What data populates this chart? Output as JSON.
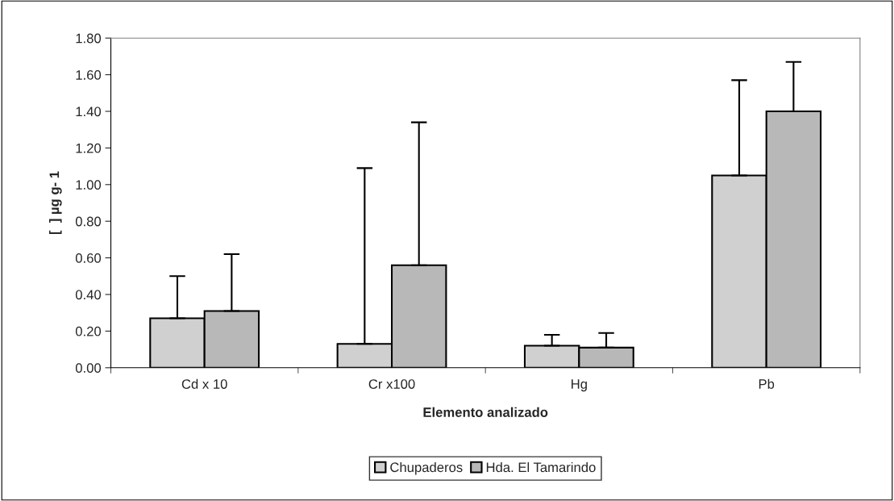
{
  "chart_data": {
    "type": "bar",
    "xlabel": "Elemento analizado",
    "ylabel": "[  ] µg g- 1",
    "categories": [
      "Cd x 10",
      "Cr x100",
      "Hg",
      "Pb"
    ],
    "series": [
      {
        "name": "Chupaderos",
        "color": "#d0d0d0",
        "values": [
          0.27,
          0.13,
          0.12,
          1.05
        ],
        "errors": [
          [
            0.27,
            0.5
          ],
          [
            0.13,
            1.09
          ],
          [
            0.12,
            0.18
          ],
          [
            1.05,
            1.57
          ]
        ]
      },
      {
        "name": "Hda. El Tamarindo",
        "color": "#b8b8b8",
        "values": [
          0.31,
          0.56,
          0.11,
          1.4
        ],
        "errors": [
          [
            0.31,
            0.62
          ],
          [
            0.56,
            1.34
          ],
          [
            0.11,
            0.19
          ],
          [
            1.4,
            1.67
          ]
        ]
      }
    ],
    "ylim": [
      0,
      1.8
    ],
    "yticks": [
      {
        "value": 0,
        "label": "0.00"
      },
      {
        "value": 0.2,
        "label": "0.20"
      },
      {
        "value": 0.4,
        "label": "0.40"
      },
      {
        "value": 0.6,
        "label": "0.60"
      },
      {
        "value": 0.8,
        "label": "0.80"
      },
      {
        "value": 1.0,
        "label": "1.00"
      },
      {
        "value": 1.2,
        "label": "1.20"
      },
      {
        "value": 1.4,
        "label": "1.40"
      },
      {
        "value": 1.6,
        "label": "1.60"
      },
      {
        "value": 1.8,
        "label": "1.80"
      }
    ],
    "grid": false,
    "legend": "bottom"
  }
}
